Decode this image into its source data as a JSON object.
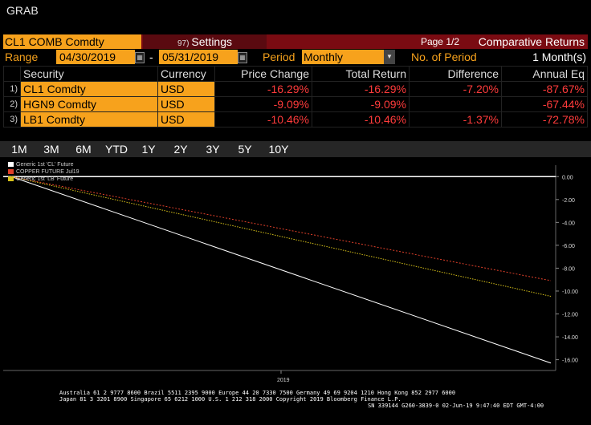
{
  "header": {
    "grab": "GRAB"
  },
  "titlebar": {
    "security_title": "CL1 COMB Comdty",
    "settings_num": "97)",
    "settings_label": "Settings",
    "page": "Page 1/2",
    "comparative": "Comparative Returns"
  },
  "controls": {
    "range_label": "Range",
    "start_date": "04/30/2019",
    "dash": "-",
    "end_date": "05/31/2019",
    "period_label": "Period",
    "period_value": "Monthly",
    "nop_label": "No. of Period",
    "nop_value": "1 Month(s)"
  },
  "table": {
    "headers": [
      "Security",
      "Currency",
      "Price Change",
      "Total Return",
      "Difference",
      "Annual Eq"
    ],
    "rows": [
      {
        "num": "1)",
        "security": "CL1 Comdty",
        "currency": "USD",
        "price_change": "-16.29%",
        "total_return": "-16.29%",
        "difference": "-7.20%",
        "annual_eq": "-87.67%"
      },
      {
        "num": "2)",
        "security": "HGN9 Comdty",
        "currency": "USD",
        "price_change": "-9.09%",
        "total_return": "-9.09%",
        "difference": "",
        "annual_eq": "-67.44%"
      },
      {
        "num": "3)",
        "security": "LB1 Comdty",
        "currency": "USD",
        "price_change": "-10.46%",
        "total_return": "-10.46%",
        "difference": "-1.37%",
        "annual_eq": "-72.78%"
      }
    ]
  },
  "tabs": [
    "1M",
    "3M",
    "6M",
    "YTD",
    "1Y",
    "2Y",
    "3Y",
    "5Y",
    "10Y"
  ],
  "legend": [
    {
      "label": "Generic 1st 'CL' Future",
      "color": "#ffffff"
    },
    {
      "label": "COPPER FUTURE     Jul19",
      "color": "#e0402a"
    },
    {
      "label": "Generic 1st 'LB' Future",
      "color": "#d8c21a"
    }
  ],
  "chart_data": {
    "type": "line",
    "x": [
      "2019-04-30",
      "2019-05-31"
    ],
    "xlabel": "2019",
    "ylim": [
      -16.8,
      1.0
    ],
    "yticks": [
      "0.00",
      "-2.00",
      "-4.00",
      "-6.00",
      "-8.00",
      "-10.00",
      "-12.00",
      "-14.00",
      "-16.00"
    ],
    "series": [
      {
        "name": "Generic 1st 'CL' Future",
        "values": [
          0,
          -16.29
        ],
        "color": "#ffffff"
      },
      {
        "name": "COPPER FUTURE     Jul19",
        "values": [
          0,
          -9.09
        ],
        "color": "#e0402a"
      },
      {
        "name": "Generic 1st 'LB' Future",
        "values": [
          0,
          -10.46
        ],
        "color": "#d8c21a"
      }
    ]
  },
  "footer": {
    "line1": "Australia 61 2 9777 8600 Brazil 5511 2395 9000 Europe 44 20 7330 7500 Germany 49 69 9204 1210 Hong Kong 852 2977 6000",
    "line2": "Japan 81 3 3201 8900         Singapore 65 6212 1000         U.S. 1 212 318 2000          Copyright 2019 Bloomberg Finance L.P.",
    "line3": "SN 339144 G260-3839-0 02-Jun-19  9:47:40 EDT  GMT-4:00"
  }
}
